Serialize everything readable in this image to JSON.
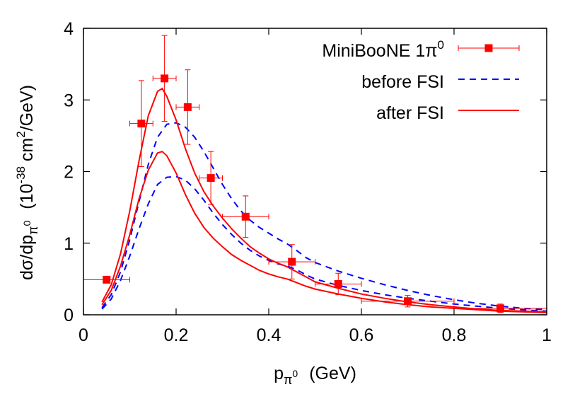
{
  "chart_data": {
    "type": "line",
    "xlim": [
      0,
      1
    ],
    "ylim": [
      0,
      4
    ],
    "x_ticks": [
      {
        "value": 0,
        "label": "0"
      },
      {
        "value": 0.2,
        "label": "0.2"
      },
      {
        "value": 0.4,
        "label": "0.4"
      },
      {
        "value": 0.6,
        "label": "0.6"
      },
      {
        "value": 0.8,
        "label": "0.8"
      },
      {
        "value": 1,
        "label": "1"
      }
    ],
    "y_ticks": [
      {
        "value": 0,
        "label": "0"
      },
      {
        "value": 1,
        "label": "1"
      },
      {
        "value": 2,
        "label": "2"
      },
      {
        "value": 3,
        "label": "3"
      },
      {
        "value": 4,
        "label": "4"
      }
    ],
    "xlabel": {
      "main": "p",
      "sub": "π",
      "subsup": "0",
      "unit": "(GeV)"
    },
    "ylabel": {
      "prefix": "dσ/dp",
      "sub": "π",
      "subsup": "0",
      "unit_open": "(10",
      "exp1": "-38",
      "unit_mid": " cm",
      "exp2": "2",
      "unit_close": "/GeV)"
    },
    "grid": false,
    "legend_position": "top-right",
    "series": [
      {
        "name": "MiniBooNE 1π",
        "name_sup": "0",
        "kind": "points",
        "color": "#ff0000",
        "points": [
          {
            "x": 0.05,
            "y": 0.49,
            "xerr": 0.05,
            "yerr": 0.04
          },
          {
            "x": 0.125,
            "y": 2.67,
            "xerr": 0.025,
            "yerr": 0.6
          },
          {
            "x": 0.175,
            "y": 3.3,
            "xerr": 0.025,
            "yerr": 0.6
          },
          {
            "x": 0.225,
            "y": 2.9,
            "xerr": 0.025,
            "yerr": 0.52
          },
          {
            "x": 0.275,
            "y": 1.91,
            "xerr": 0.025,
            "yerr": 0.37
          },
          {
            "x": 0.35,
            "y": 1.37,
            "xerr": 0.05,
            "yerr": 0.29
          },
          {
            "x": 0.45,
            "y": 0.74,
            "xerr": 0.05,
            "yerr": 0.24
          },
          {
            "x": 0.55,
            "y": 0.43,
            "xerr": 0.05,
            "yerr": 0.15
          },
          {
            "x": 0.7,
            "y": 0.19,
            "xerr": 0.1,
            "yerr": 0.08
          },
          {
            "x": 0.9,
            "y": 0.09,
            "xerr": 0.1,
            "yerr": 0.06
          }
        ]
      },
      {
        "name": "before FSI",
        "kind": "dashed",
        "color": "#0000ff",
        "curves": [
          [
            [
              0.04,
              0.1
            ],
            [
              0.06,
              0.28
            ],
            [
              0.08,
              0.6
            ],
            [
              0.1,
              1.05
            ],
            [
              0.12,
              1.58
            ],
            [
              0.14,
              2.1
            ],
            [
              0.16,
              2.48
            ],
            [
              0.18,
              2.66
            ],
            [
              0.2,
              2.68
            ],
            [
              0.22,
              2.62
            ],
            [
              0.24,
              2.48
            ],
            [
              0.26,
              2.28
            ],
            [
              0.28,
              2.05
            ],
            [
              0.3,
              1.82
            ],
            [
              0.32,
              1.62
            ],
            [
              0.34,
              1.45
            ],
            [
              0.36,
              1.32
            ],
            [
              0.38,
              1.22
            ],
            [
              0.4,
              1.14
            ],
            [
              0.42,
              1.06
            ],
            [
              0.44,
              0.99
            ],
            [
              0.46,
              0.9
            ],
            [
              0.48,
              0.8
            ],
            [
              0.5,
              0.73
            ],
            [
              0.55,
              0.61
            ],
            [
              0.6,
              0.51
            ],
            [
              0.65,
              0.42
            ],
            [
              0.7,
              0.34
            ],
            [
              0.75,
              0.27
            ],
            [
              0.8,
              0.21
            ],
            [
              0.85,
              0.16
            ],
            [
              0.9,
              0.12
            ],
            [
              0.95,
              0.09
            ],
            [
              1.0,
              0.07
            ]
          ],
          [
            [
              0.04,
              0.08
            ],
            [
              0.06,
              0.22
            ],
            [
              0.08,
              0.48
            ],
            [
              0.1,
              0.82
            ],
            [
              0.12,
              1.2
            ],
            [
              0.14,
              1.55
            ],
            [
              0.16,
              1.82
            ],
            [
              0.18,
              1.92
            ],
            [
              0.2,
              1.93
            ],
            [
              0.22,
              1.88
            ],
            [
              0.24,
              1.76
            ],
            [
              0.26,
              1.6
            ],
            [
              0.28,
              1.42
            ],
            [
              0.3,
              1.26
            ],
            [
              0.32,
              1.12
            ],
            [
              0.34,
              1.0
            ],
            [
              0.36,
              0.9
            ],
            [
              0.38,
              0.82
            ],
            [
              0.4,
              0.76
            ],
            [
              0.42,
              0.71
            ],
            [
              0.44,
              0.68
            ],
            [
              0.46,
              0.63
            ],
            [
              0.48,
              0.56
            ],
            [
              0.5,
              0.5
            ],
            [
              0.55,
              0.41
            ],
            [
              0.6,
              0.34
            ],
            [
              0.65,
              0.28
            ],
            [
              0.7,
              0.23
            ],
            [
              0.75,
              0.19
            ],
            [
              0.8,
              0.15
            ],
            [
              0.85,
              0.12
            ],
            [
              0.9,
              0.09
            ],
            [
              0.95,
              0.07
            ],
            [
              1.0,
              0.05
            ]
          ]
        ]
      },
      {
        "name": "after FSI",
        "kind": "solid",
        "color": "#ff0000",
        "curves": [
          [
            [
              0.04,
              0.18
            ],
            [
              0.06,
              0.42
            ],
            [
              0.08,
              0.85
            ],
            [
              0.1,
              1.45
            ],
            [
              0.12,
              2.15
            ],
            [
              0.14,
              2.78
            ],
            [
              0.16,
              3.12
            ],
            [
              0.17,
              3.16
            ],
            [
              0.18,
              3.05
            ],
            [
              0.2,
              2.72
            ],
            [
              0.22,
              2.32
            ],
            [
              0.24,
              1.98
            ],
            [
              0.26,
              1.72
            ],
            [
              0.28,
              1.52
            ],
            [
              0.3,
              1.35
            ],
            [
              0.32,
              1.2
            ],
            [
              0.34,
              1.07
            ],
            [
              0.36,
              0.95
            ],
            [
              0.38,
              0.86
            ],
            [
              0.4,
              0.78
            ],
            [
              0.42,
              0.72
            ],
            [
              0.44,
              0.67
            ],
            [
              0.46,
              0.6
            ],
            [
              0.48,
              0.53
            ],
            [
              0.5,
              0.46
            ],
            [
              0.55,
              0.37
            ],
            [
              0.6,
              0.29
            ],
            [
              0.65,
              0.23
            ],
            [
              0.7,
              0.18
            ],
            [
              0.75,
              0.14
            ],
            [
              0.8,
              0.11
            ],
            [
              0.85,
              0.08
            ],
            [
              0.9,
              0.06
            ],
            [
              0.95,
              0.05
            ],
            [
              1.0,
              0.04
            ]
          ],
          [
            [
              0.04,
              0.14
            ],
            [
              0.06,
              0.34
            ],
            [
              0.08,
              0.68
            ],
            [
              0.1,
              1.12
            ],
            [
              0.12,
              1.62
            ],
            [
              0.14,
              2.02
            ],
            [
              0.16,
              2.26
            ],
            [
              0.17,
              2.28
            ],
            [
              0.18,
              2.22
            ],
            [
              0.2,
              1.98
            ],
            [
              0.22,
              1.68
            ],
            [
              0.24,
              1.42
            ],
            [
              0.26,
              1.22
            ],
            [
              0.28,
              1.07
            ],
            [
              0.3,
              0.95
            ],
            [
              0.32,
              0.84
            ],
            [
              0.34,
              0.76
            ],
            [
              0.36,
              0.69
            ],
            [
              0.38,
              0.62
            ],
            [
              0.4,
              0.57
            ],
            [
              0.42,
              0.53
            ],
            [
              0.44,
              0.5
            ],
            [
              0.46,
              0.45
            ],
            [
              0.48,
              0.4
            ],
            [
              0.5,
              0.36
            ],
            [
              0.55,
              0.29
            ],
            [
              0.6,
              0.23
            ],
            [
              0.65,
              0.18
            ],
            [
              0.7,
              0.14
            ],
            [
              0.75,
              0.11
            ],
            [
              0.8,
              0.09
            ],
            [
              0.85,
              0.07
            ],
            [
              0.9,
              0.05
            ],
            [
              0.95,
              0.04
            ],
            [
              1.0,
              0.03
            ]
          ]
        ]
      }
    ]
  }
}
